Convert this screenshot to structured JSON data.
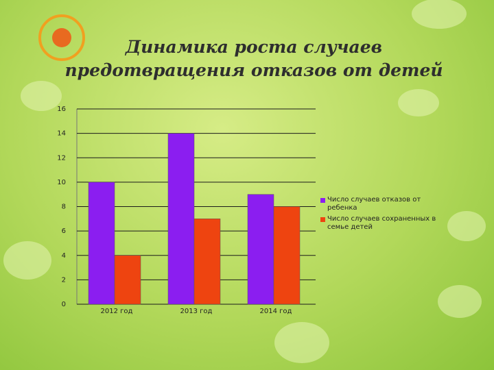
{
  "chart_data": {
    "type": "bar",
    "title": "Динамика роста случаев предотвращения отказов от детей",
    "categories": [
      "2012 год",
      "2013 год",
      "2014 год"
    ],
    "series": [
      {
        "name": "Число случаев отказов от ребенка",
        "color": "#8b1ef0",
        "values": [
          10,
          14,
          9
        ]
      },
      {
        "name": "Число случаев сохраненных в семье детей",
        "color": "#ee4410",
        "values": [
          4,
          7,
          8
        ]
      }
    ],
    "ylim": [
      0,
      16
    ],
    "yticks": [
      0,
      2,
      4,
      6,
      8,
      10,
      12,
      14,
      16
    ],
    "grid": true,
    "legend": "right"
  }
}
